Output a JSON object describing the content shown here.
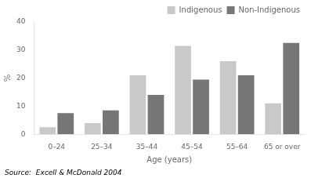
{
  "chart_data": {
    "type": "bar",
    "categories": [
      "0–24",
      "25–34",
      "35–44",
      "45–54",
      "55–64",
      "65 or over"
    ],
    "series": [
      {
        "name": "Indigenous",
        "color": "#c9c9c9",
        "values": [
          2.5,
          4.0,
          21.0,
          31.5,
          26.0,
          11.0
        ]
      },
      {
        "name": "Non-Indigenous",
        "color": "#767676",
        "values": [
          7.5,
          8.5,
          14.0,
          19.5,
          21.0,
          32.5
        ]
      }
    ],
    "xlabel": "Age (years)",
    "ylabel": "%",
    "ylim": [
      0,
      40
    ],
    "yticks": [
      0,
      10,
      20,
      30,
      40
    ],
    "grid": false,
    "legend": "upper right",
    "annotations": [
      "Source:  Excell & McDonald 2004"
    ]
  }
}
